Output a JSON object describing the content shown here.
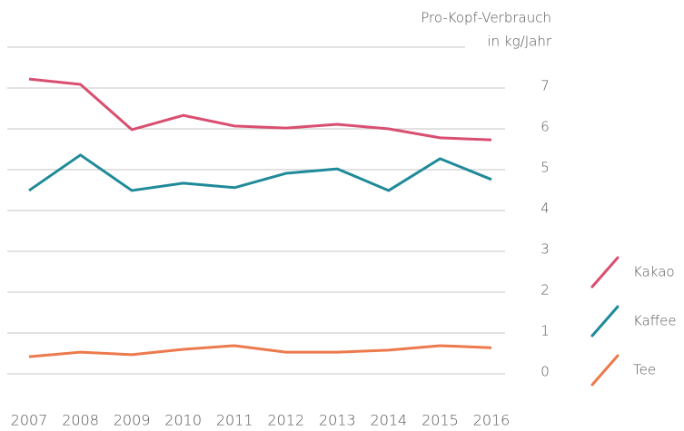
{
  "chart_data": {
    "type": "line",
    "axis_label": [
      "Pro-Kopf-Verbrauch",
      "in kg/Jahr"
    ],
    "categories": [
      "2007",
      "2008",
      "2009",
      "2010",
      "2011",
      "2012",
      "2013",
      "2014",
      "2015",
      "2016"
    ],
    "series": [
      {
        "name": "Kakao",
        "color": "#d94f70",
        "values": [
          7.22,
          7.09,
          5.98,
          6.33,
          6.07,
          6.02,
          6.11,
          6.0,
          5.78,
          5.73
        ]
      },
      {
        "name": "Kaffee",
        "color": "#1f8a99",
        "values": [
          4.49,
          5.36,
          4.49,
          4.67,
          4.56,
          4.91,
          5.02,
          4.49,
          5.27,
          4.76
        ]
      },
      {
        "name": "Tee",
        "color": "#ec7a4c",
        "values": [
          0.42,
          0.53,
          0.47,
          0.6,
          0.69,
          0.53,
          0.53,
          0.58,
          0.69,
          0.64
        ]
      }
    ],
    "ylim": [
      0,
      8
    ],
    "yticks": [
      0,
      1,
      2,
      3,
      4,
      5,
      6,
      7
    ],
    "grid": true,
    "legend": "right"
  }
}
